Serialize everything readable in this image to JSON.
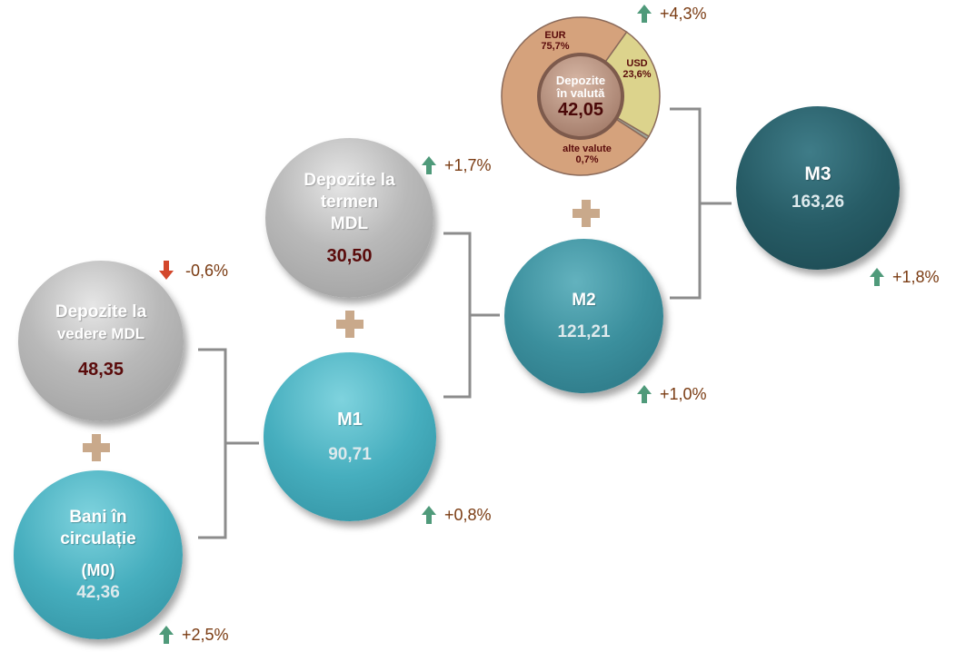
{
  "colors": {
    "change_text": "#7a3b12",
    "arrow_up": "#4f9a7a",
    "arrow_down": "#d3472b",
    "value_dark": "#5a0b0b",
    "plus": "#c9a98b"
  },
  "nodes": {
    "depozite_vedere": {
      "name_line1": "Depozite la",
      "name_line2": "vedere MDL",
      "value": "48,35",
      "change": "-0,6%",
      "direction": "down"
    },
    "bani_circulatie": {
      "name_line1": "Bani în",
      "name_line2": "circulație",
      "name_line3": "(M0)",
      "value": "42,36",
      "change": "+2,5%",
      "direction": "up"
    },
    "m1": {
      "name": "M1",
      "value": "90,71",
      "change": "+0,8%",
      "direction": "up"
    },
    "depozite_termen": {
      "name_line1": "Depozite la",
      "name_line2": "termen",
      "name_line3": "MDL",
      "value": "30,50",
      "change": "+1,7%",
      "direction": "up"
    },
    "m2": {
      "name": "M2",
      "value": "121,21",
      "change": "+1,0%",
      "direction": "up"
    },
    "depozite_valuta": {
      "name_line1": "Depozite",
      "name_line2": "în valută",
      "value": "42,05",
      "change": "+4,3%",
      "direction": "up",
      "segments": [
        {
          "label": "EUR",
          "percent": "75,7%",
          "share": 75.7,
          "color": "#d5a27c"
        },
        {
          "label": "USD",
          "percent": "23,6%",
          "share": 23.6,
          "color": "#dcd38c"
        },
        {
          "label": "alte valute",
          "percent": "0,7%",
          "share": 0.7,
          "color": "#9da59a"
        }
      ]
    },
    "m3": {
      "name": "M3",
      "value": "163,26",
      "change": "+1,8%",
      "direction": "up"
    }
  }
}
